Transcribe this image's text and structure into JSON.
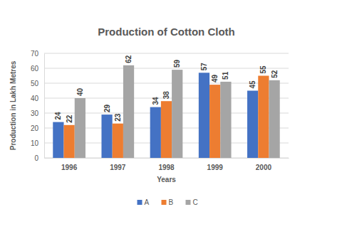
{
  "chart_data": {
    "type": "bar",
    "title": "Production of Cotton Cloth",
    "x_label": "Years",
    "y_label": "Production in Lakh Metres",
    "categories": [
      "1996",
      "1997",
      "1998",
      "1999",
      "2000"
    ],
    "series": [
      {
        "name": "A",
        "color": "#4472c4",
        "values": [
          24,
          29,
          34,
          57,
          45
        ]
      },
      {
        "name": "B",
        "color": "#ed7d31",
        "values": [
          22,
          23,
          38,
          49,
          55
        ]
      },
      {
        "name": "C",
        "color": "#a5a5a5",
        "values": [
          40,
          62,
          59,
          51,
          52
        ]
      }
    ],
    "ylim": [
      0,
      70
    ],
    "yticks": [
      0,
      10,
      20,
      30,
      40,
      50,
      60,
      70
    ],
    "grid": true,
    "legend": "bottom",
    "data_labels": true
  }
}
